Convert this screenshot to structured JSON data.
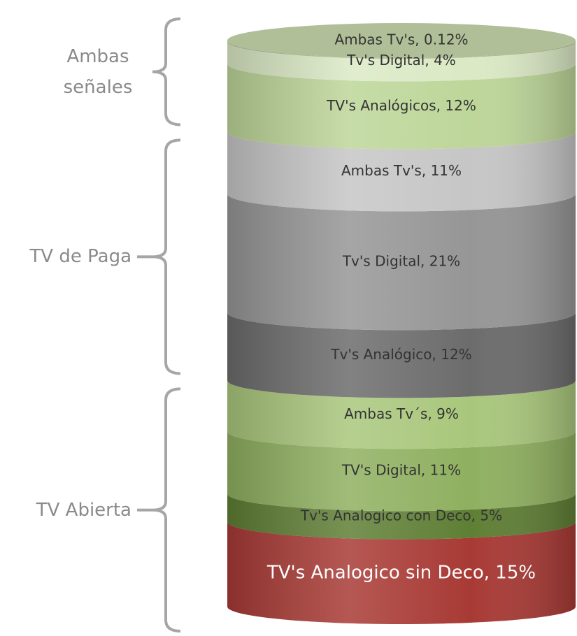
{
  "chart_data": {
    "type": "stacked_cylinder",
    "groups": [
      {
        "label": "TV Abierta",
        "values": [
          15,
          5,
          11,
          9
        ],
        "value_labels": [
          "TV's Analogico sin Deco, 15%",
          "Tv's Analogico con Deco, 5%",
          "TV's Digital, 11%",
          "Ambas Tv´s, 9%"
        ],
        "colors": [
          "#a83a35",
          "#5f7f35",
          "#8fb060",
          "#a9c77c"
        ]
      },
      {
        "label": "TV de Paga",
        "values": [
          12,
          21,
          11
        ],
        "value_labels": [
          "Tv's Analógico, 12%",
          "Tv's Digital, 21%",
          "Ambas Tv's, 11%"
        ],
        "colors": [
          "#6c6c6c",
          "#969696",
          "#c6c6c6"
        ]
      },
      {
        "label": "Ambas señales",
        "values": [
          12,
          4,
          0.12
        ],
        "value_labels": [
          "TV's Analógicos, 12%",
          "Tv's Digital, 4%",
          "Ambas Tv's, 0.12%"
        ],
        "colors": [
          "#bdd699",
          "#dbe9c5",
          "#a5b78a"
        ]
      }
    ]
  }
}
